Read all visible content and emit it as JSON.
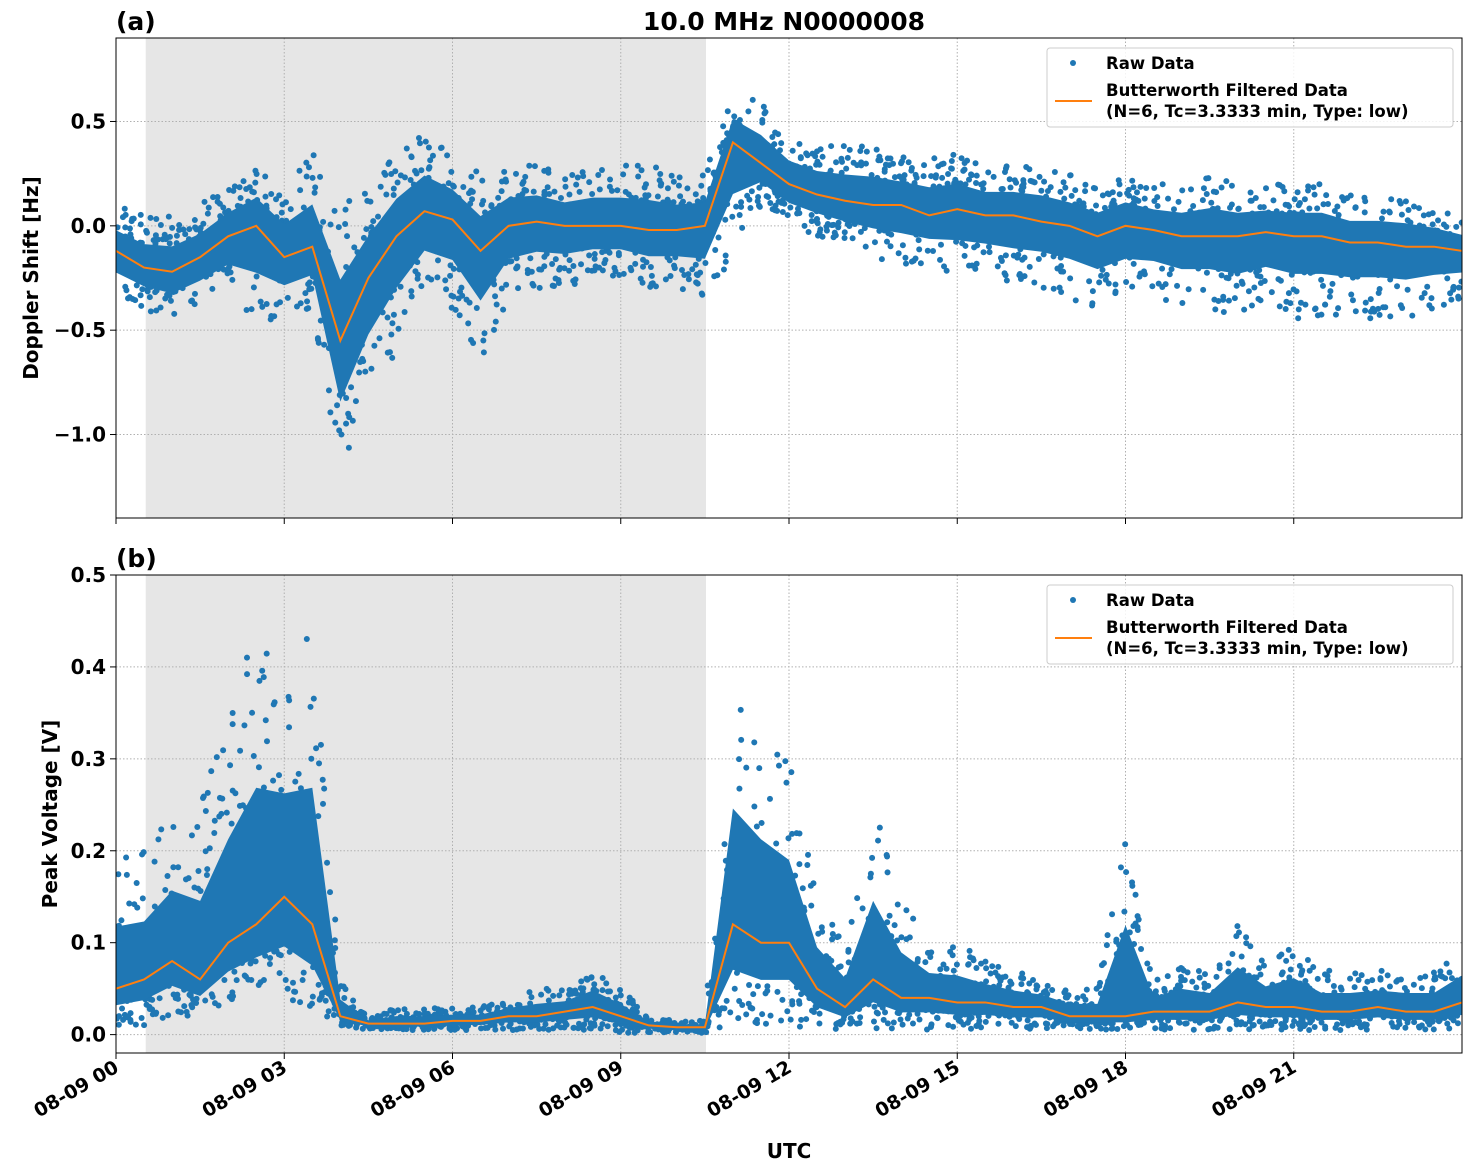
{
  "title": "10.0 MHz N0000008",
  "xlabel": "UTC",
  "x_tick_labels": [
    "08-09 00",
    "08-09 03",
    "08-09 06",
    "08-09 09",
    "08-09 12",
    "08-09 15",
    "08-09 18",
    "08-09 21"
  ],
  "colors": {
    "raw": "#1f77b4",
    "filtered": "#ff7f0e",
    "shade": "#e6e6e6"
  },
  "legend": {
    "raw": "Raw Data",
    "filtered_line1": "Butterworth Filtered Data",
    "filtered_line2": "(N=6, Tc=3.3333 min, Type: low)",
    "placement": "top-right"
  },
  "chart_data": [
    {
      "type": "scatter",
      "panel_label": "(a)",
      "ylabel": "Doppler Shift [Hz]",
      "xlim_hours_utc": [
        0,
        24
      ],
      "ylim": [
        -1.4,
        0.9
      ],
      "y_ticks": [
        0.5,
        0.0,
        -0.5,
        -1.0
      ],
      "y_tick_labels": [
        "0.5",
        "0.0",
        "−0.5",
        "−1.0"
      ],
      "grid": true,
      "shaded_interval_hours_utc": [
        0.53,
        10.52
      ],
      "x_hours_utc": [
        0,
        0.5,
        1,
        1.5,
        2,
        2.5,
        3,
        3.5,
        4,
        4.5,
        5,
        5.5,
        6,
        6.5,
        7,
        7.5,
        8,
        8.5,
        9,
        9.5,
        10,
        10.5,
        11,
        11.5,
        12,
        12.5,
        13,
        13.5,
        14,
        14.5,
        15,
        15.5,
        16,
        16.5,
        17,
        17.5,
        18,
        18.5,
        19,
        19.5,
        20,
        20.5,
        21,
        21.5,
        22,
        22.5,
        23,
        23.5,
        24
      ],
      "series": [
        {
          "name": "Raw Data",
          "kind": "envelope",
          "high": [
            0.1,
            0.05,
            0.05,
            0.1,
            0.2,
            0.3,
            0.2,
            0.35,
            0.1,
            0.2,
            0.35,
            0.45,
            0.35,
            0.25,
            0.3,
            0.3,
            0.25,
            0.3,
            0.3,
            0.3,
            0.25,
            0.25,
            0.65,
            0.6,
            0.45,
            0.4,
            0.4,
            0.4,
            0.35,
            0.35,
            0.35,
            0.3,
            0.3,
            0.3,
            0.25,
            0.2,
            0.25,
            0.2,
            0.2,
            0.25,
            0.2,
            0.2,
            0.2,
            0.2,
            0.15,
            0.15,
            0.15,
            0.1,
            0.05
          ],
          "low": [
            -0.35,
            -0.4,
            -0.45,
            -0.4,
            -0.35,
            -0.5,
            -0.45,
            -0.4,
            -1.2,
            -0.85,
            -0.6,
            -0.35,
            -0.4,
            -0.65,
            -0.35,
            -0.3,
            -0.3,
            -0.25,
            -0.25,
            -0.3,
            -0.3,
            -0.35,
            -0.15,
            0.1,
            0.0,
            -0.05,
            -0.1,
            -0.15,
            -0.2,
            -0.2,
            -0.25,
            -0.25,
            -0.3,
            -0.3,
            -0.35,
            -0.4,
            -0.35,
            -0.35,
            -0.4,
            -0.4,
            -0.45,
            -0.4,
            -0.45,
            -0.45,
            -0.45,
            -0.45,
            -0.45,
            -0.4,
            -0.35
          ]
        },
        {
          "name": "Butterworth Filtered Data",
          "kind": "line",
          "values": [
            -0.12,
            -0.2,
            -0.22,
            -0.15,
            -0.05,
            0.0,
            -0.15,
            -0.1,
            -0.55,
            -0.25,
            -0.05,
            0.07,
            0.03,
            -0.12,
            0.0,
            0.02,
            0.0,
            0.0,
            0.0,
            -0.02,
            -0.02,
            0.0,
            0.4,
            0.3,
            0.2,
            0.15,
            0.12,
            0.1,
            0.1,
            0.05,
            0.08,
            0.05,
            0.05,
            0.02,
            0.0,
            -0.05,
            0.0,
            -0.02,
            -0.05,
            -0.05,
            -0.05,
            -0.03,
            -0.05,
            -0.05,
            -0.08,
            -0.08,
            -0.1,
            -0.1,
            -0.12
          ]
        }
      ]
    },
    {
      "type": "scatter",
      "panel_label": "(b)",
      "ylabel": "Peak Voltage [V]",
      "xlim_hours_utc": [
        0,
        24
      ],
      "ylim": [
        -0.02,
        0.5
      ],
      "y_ticks": [
        0.0,
        0.1,
        0.2,
        0.3,
        0.4,
        0.5
      ],
      "y_tick_labels": [
        "0.0",
        "0.1",
        "0.2",
        "0.3",
        "0.4",
        "0.5"
      ],
      "grid": true,
      "shaded_interval_hours_utc": [
        0.53,
        10.52
      ],
      "x_hours_utc": [
        0,
        0.5,
        1,
        1.5,
        2,
        2.5,
        3,
        3.5,
        4,
        4.5,
        5,
        5.5,
        6,
        6.5,
        7,
        7.5,
        8,
        8.5,
        9,
        9.5,
        10,
        10.5,
        11,
        11.5,
        12,
        12.5,
        13,
        13.5,
        14,
        14.5,
        15,
        15.5,
        16,
        16.5,
        17,
        17.5,
        18,
        18.5,
        19,
        19.5,
        20,
        20.5,
        21,
        21.5,
        22,
        22.5,
        23,
        23.5,
        24
      ],
      "series": [
        {
          "name": "Raw Data",
          "kind": "envelope",
          "high": [
            0.2,
            0.2,
            0.25,
            0.25,
            0.35,
            0.45,
            0.4,
            0.45,
            0.06,
            0.02,
            0.03,
            0.03,
            0.03,
            0.03,
            0.04,
            0.05,
            0.05,
            0.07,
            0.05,
            0.02,
            0.015,
            0.015,
            0.4,
            0.35,
            0.3,
            0.15,
            0.1,
            0.25,
            0.15,
            0.1,
            0.1,
            0.08,
            0.07,
            0.06,
            0.05,
            0.05,
            0.24,
            0.06,
            0.08,
            0.07,
            0.12,
            0.08,
            0.1,
            0.07,
            0.07,
            0.07,
            0.07,
            0.07,
            0.1
          ],
          "low": [
            0.01,
            0.01,
            0.02,
            0.02,
            0.03,
            0.04,
            0.03,
            0.02,
            0.01,
            0.005,
            0.005,
            0.005,
            0.005,
            0.005,
            0.005,
            0.005,
            0.005,
            0.005,
            0.002,
            0.002,
            0.002,
            0.002,
            0.01,
            0.01,
            0.01,
            0.005,
            0.005,
            0.005,
            0.005,
            0.005,
            0.005,
            0.005,
            0.005,
            0.005,
            0.005,
            0.005,
            0.005,
            0.005,
            0.005,
            0.005,
            0.005,
            0.005,
            0.005,
            0.005,
            0.005,
            0.005,
            0.005,
            0.005,
            0.005
          ]
        },
        {
          "name": "Butterworth Filtered Data",
          "kind": "line",
          "values": [
            0.05,
            0.06,
            0.08,
            0.06,
            0.1,
            0.12,
            0.15,
            0.12,
            0.02,
            0.012,
            0.012,
            0.012,
            0.015,
            0.015,
            0.02,
            0.02,
            0.025,
            0.03,
            0.02,
            0.01,
            0.008,
            0.008,
            0.12,
            0.1,
            0.1,
            0.05,
            0.03,
            0.06,
            0.04,
            0.04,
            0.035,
            0.035,
            0.03,
            0.03,
            0.02,
            0.02,
            0.02,
            0.025,
            0.025,
            0.025,
            0.035,
            0.03,
            0.03,
            0.025,
            0.025,
            0.03,
            0.025,
            0.025,
            0.035
          ]
        }
      ]
    }
  ]
}
